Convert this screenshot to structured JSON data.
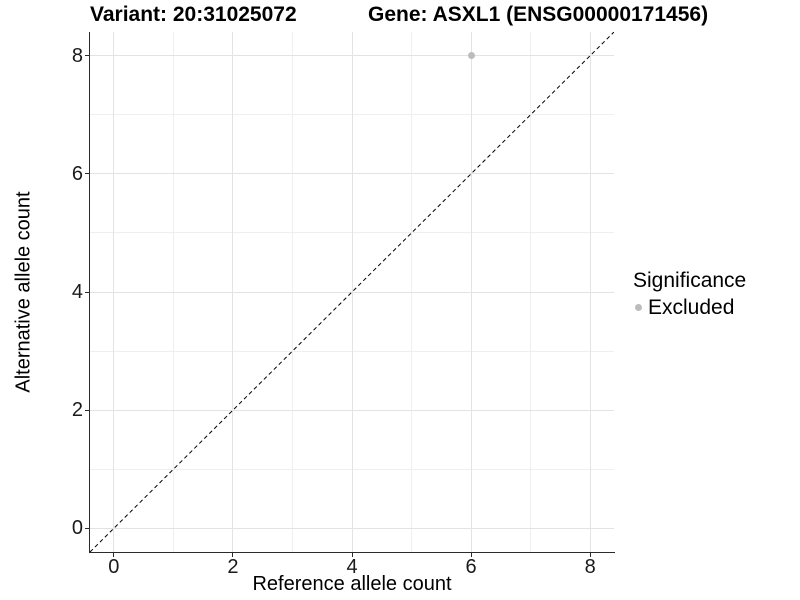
{
  "titles": {
    "left": "Variant: 20:31025072",
    "right": "Gene: ASXL1 (ENSG00000171456)"
  },
  "chart_data": {
    "type": "scatter",
    "xlabel": "Reference allele count",
    "ylabel": "Alternative allele count",
    "xlim": [
      -0.4,
      8.4
    ],
    "ylim": [
      -0.4,
      8.4
    ],
    "x_major_ticks": [
      0,
      2,
      4,
      6,
      8
    ],
    "y_major_ticks": [
      0,
      2,
      4,
      6,
      8
    ],
    "x_minor_ticks": [
      1,
      3,
      5,
      7
    ],
    "y_minor_ticks": [
      1,
      3,
      5,
      7
    ],
    "grid": "major and minor gridlines on white panel",
    "points": [
      {
        "x": 6,
        "y": 8,
        "series": "Excluded"
      }
    ],
    "reference_line": {
      "style": "dashed",
      "from": [
        -0.4,
        -0.4
      ],
      "to": [
        8.4,
        8.4
      ],
      "equation": "y = x"
    },
    "legend": {
      "title": "Significance",
      "position": "right",
      "entries": [
        {
          "label": "Excluded",
          "marker": "circle",
          "color": "#bcbcbc"
        }
      ]
    }
  },
  "colors": {
    "point": "#bcbcbc",
    "grid_major": "#e3e3e3",
    "grid_minor": "#efefef",
    "axis_line": "#2b2b2b",
    "tick_mark": "#2b2b2b",
    "dashed_line": "#000000",
    "background": "#ffffff"
  }
}
